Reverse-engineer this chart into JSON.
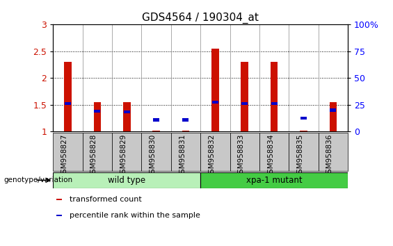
{
  "title": "GDS4564 / 190304_at",
  "samples": [
    "GSM958827",
    "GSM958828",
    "GSM958829",
    "GSM958830",
    "GSM958831",
    "GSM958832",
    "GSM958833",
    "GSM958834",
    "GSM958835",
    "GSM958836"
  ],
  "red_values": [
    2.3,
    1.55,
    1.55,
    1.02,
    1.02,
    2.55,
    2.3,
    2.3,
    1.02,
    1.55
  ],
  "blue_values": [
    1.52,
    1.38,
    1.37,
    1.22,
    1.22,
    1.55,
    1.52,
    1.52,
    1.25,
    1.4
  ],
  "blue_heights": [
    0.055,
    0.055,
    0.055,
    0.055,
    0.055,
    0.055,
    0.055,
    0.055,
    0.055,
    0.055
  ],
  "ylim": [
    1.0,
    3.0
  ],
  "yticks_left": [
    1.0,
    1.5,
    2.0,
    2.5,
    3.0
  ],
  "ytick_labels_left": [
    "1",
    "1.5",
    "2",
    "2.5",
    "3"
  ],
  "yticks_right_vals": [
    0,
    25,
    50,
    75,
    100
  ],
  "ytick_labels_right": [
    "0",
    "25",
    "50",
    "75",
    "100%"
  ],
  "groups": [
    {
      "label": "wild type",
      "start": 0,
      "end": 4,
      "color": "#b8f0b8"
    },
    {
      "label": "xpa-1 mutant",
      "start": 5,
      "end": 9,
      "color": "#44cc44"
    }
  ],
  "group_label": "genotype/variation",
  "legend_items": [
    {
      "color": "#cc1100",
      "label": "transformed count"
    },
    {
      "color": "#0000cc",
      "label": "percentile rank within the sample"
    }
  ],
  "red_color": "#cc1100",
  "blue_color": "#0000cc",
  "bar_width": 0.25,
  "ticklabel_bg": "#c8c8c8",
  "fig_bg": "white"
}
